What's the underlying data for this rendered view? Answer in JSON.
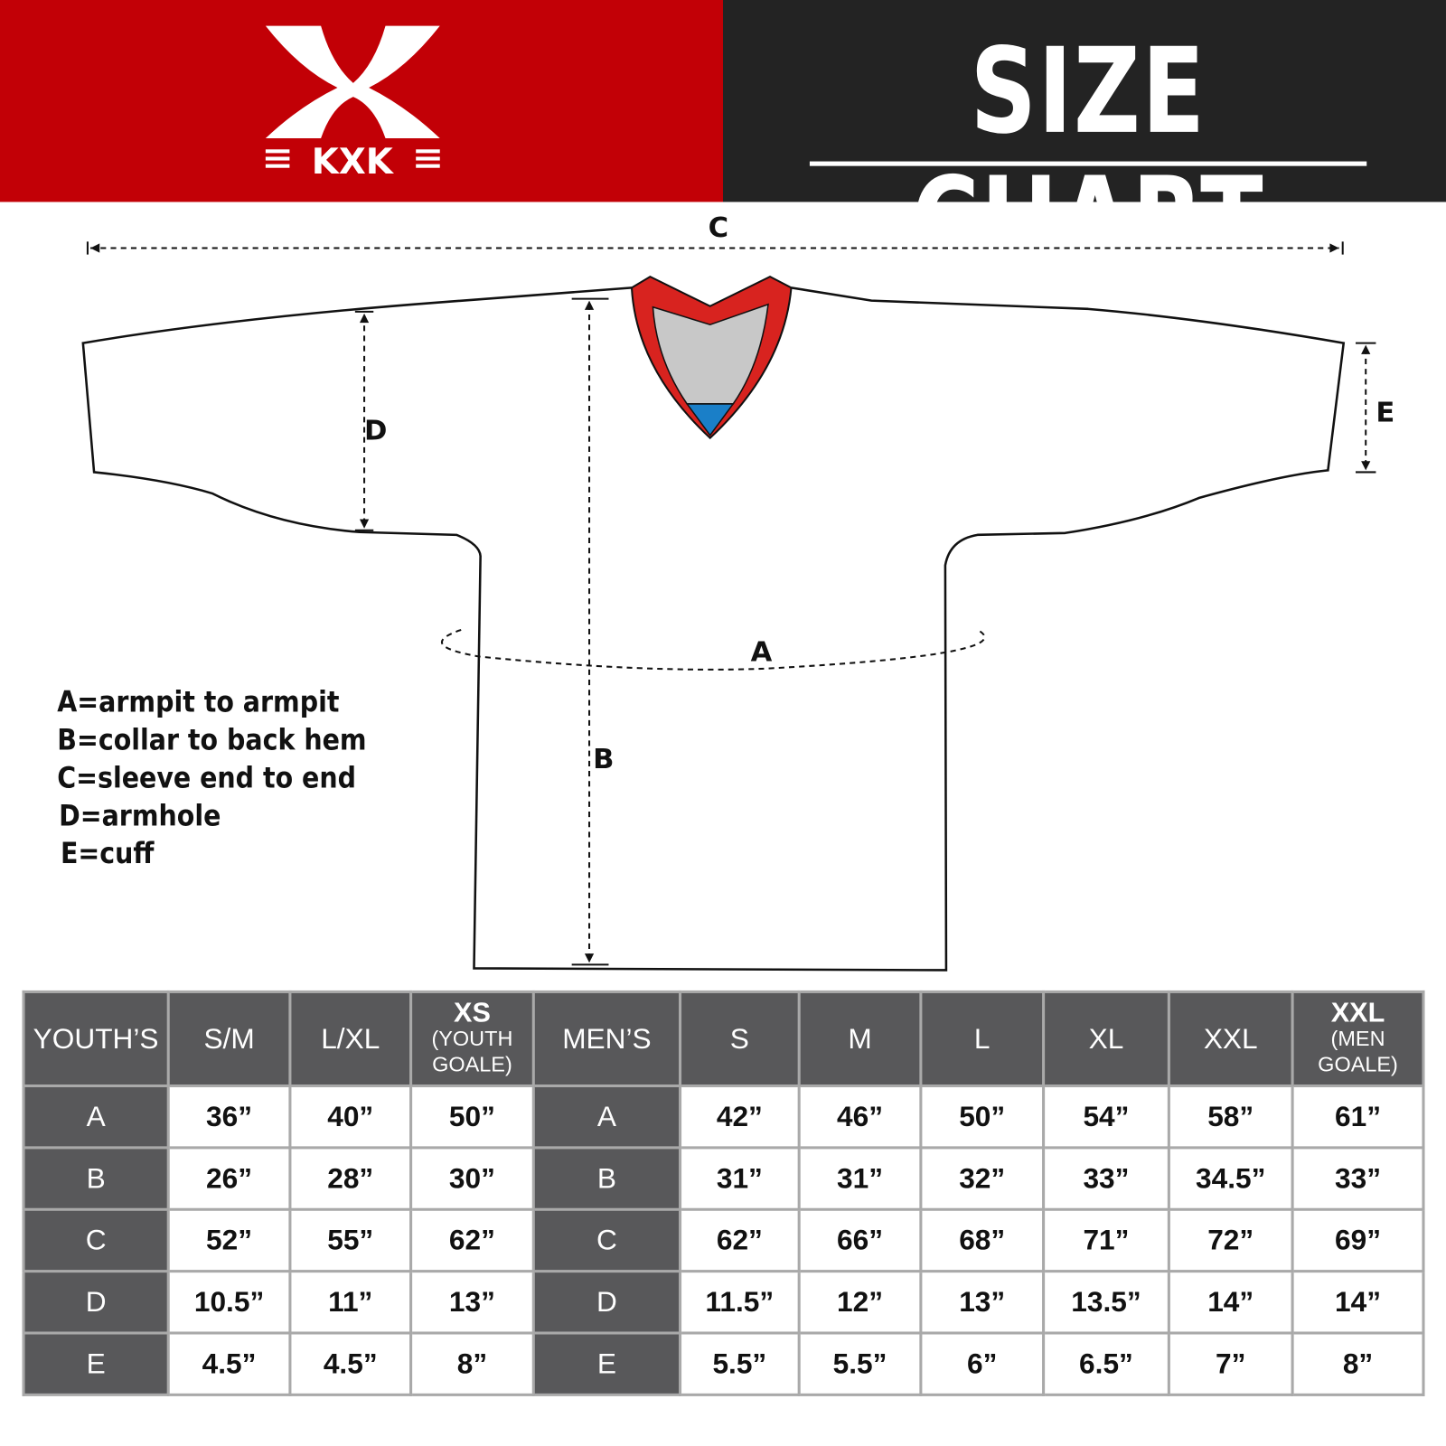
{
  "header": {
    "brand": "KXK",
    "title": "SIZE CHART",
    "colors": {
      "brand_red": "#c20006",
      "dark": "#232323"
    }
  },
  "diagram": {
    "labels": {
      "a": "A",
      "b": "B",
      "c": "C",
      "d": "D",
      "e": "E"
    },
    "legend": [
      "A=armpit to armpit",
      "B=collar to back hem",
      "C=sleeve end to end",
      "D=armhole",
      "E=cuff"
    ]
  },
  "table": {
    "youth_header": "YOUTH’S",
    "men_header": "MEN’S",
    "youth_sizes": [
      {
        "main": "S/M"
      },
      {
        "main": "L/XL"
      },
      {
        "main": "XS",
        "note": "(YOUTH GOALE)"
      }
    ],
    "men_sizes": [
      {
        "main": "S"
      },
      {
        "main": "M"
      },
      {
        "main": "L"
      },
      {
        "main": "XL"
      },
      {
        "main": "XXL"
      },
      {
        "main": "XXL",
        "note": "(MEN GOALE)"
      }
    ],
    "rows": [
      {
        "label": "A",
        "youth": [
          "36”",
          "40”",
          "50”"
        ],
        "men": [
          "42”",
          "46”",
          "50”",
          "54”",
          "58”",
          "61”"
        ]
      },
      {
        "label": "B",
        "youth": [
          "26”",
          "28”",
          "30”"
        ],
        "men": [
          "31”",
          "31”",
          "32”",
          "33”",
          "34.5”",
          "33”"
        ]
      },
      {
        "label": "C",
        "youth": [
          "52”",
          "55”",
          "62”"
        ],
        "men": [
          "62”",
          "66”",
          "68”",
          "71”",
          "72”",
          "69”"
        ]
      },
      {
        "label": "D",
        "youth": [
          "10.5”",
          "11”",
          "13”"
        ],
        "men": [
          "11.5”",
          "12”",
          "13”",
          "13.5”",
          "14”",
          "14”"
        ]
      },
      {
        "label": "E",
        "youth": [
          "4.5”",
          "4.5”",
          "8”"
        ],
        "men": [
          "5.5”",
          "5.5”",
          "6”",
          "6.5”",
          "7”",
          "8”"
        ]
      }
    ]
  }
}
